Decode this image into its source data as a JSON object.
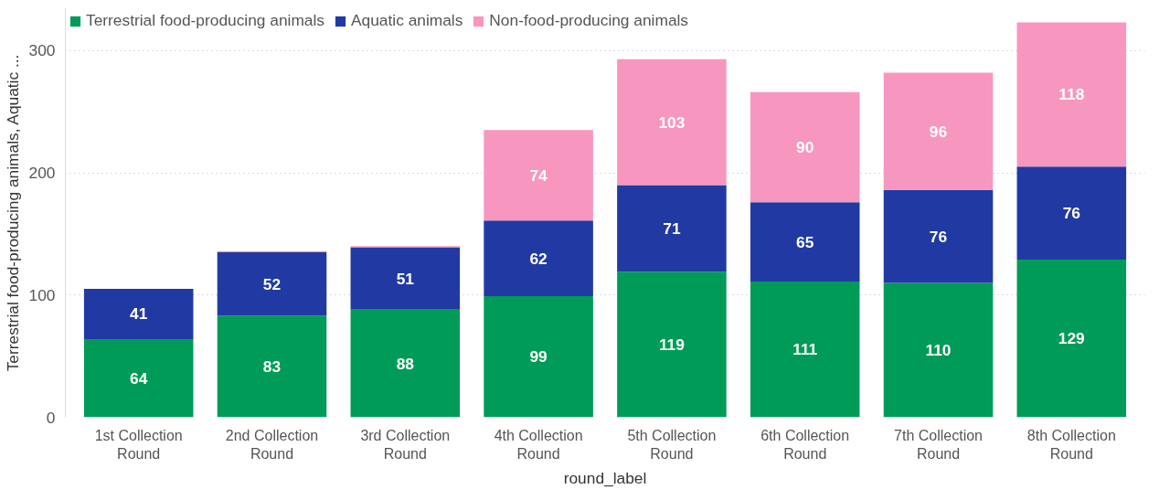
{
  "chart_data": {
    "type": "bar",
    "stacked": true,
    "xlabel": "round_label",
    "ylabel": "Terrestrial food-producing animals, Aquatic ...",
    "categories": [
      "1st Collection Round",
      "2nd Collection Round",
      "3rd Collection Round",
      "4th Collection Round",
      "5th Collection Round",
      "6th Collection Round",
      "7th Collection Round",
      "8th Collection Round"
    ],
    "series": [
      {
        "name": "Terrestrial food-producing animals",
        "color": "#009b58",
        "values": [
          64,
          83,
          88,
          99,
          119,
          111,
          110,
          129
        ],
        "value_labels": [
          "64",
          "83",
          "88",
          "99",
          "119",
          "111",
          "110",
          "129"
        ]
      },
      {
        "name": "Aquatic animals",
        "color": "#213aa3",
        "values": [
          41,
          52,
          51,
          62,
          71,
          65,
          76,
          76
        ],
        "value_labels": [
          "41",
          "52",
          "51",
          "62",
          "71",
          "65",
          "76",
          "76"
        ]
      },
      {
        "name": "Non-food-producing animals",
        "color": "#f797bf",
        "values": [
          null,
          1,
          1,
          74,
          103,
          90,
          96,
          118
        ],
        "value_labels": [
          null,
          null,
          null,
          "74",
          "103",
          "90",
          "96",
          "118"
        ]
      }
    ],
    "ylim": [
      0,
      335
    ],
    "yticks": [
      0,
      100,
      200,
      300
    ],
    "grid": "y",
    "legend": "top left"
  }
}
